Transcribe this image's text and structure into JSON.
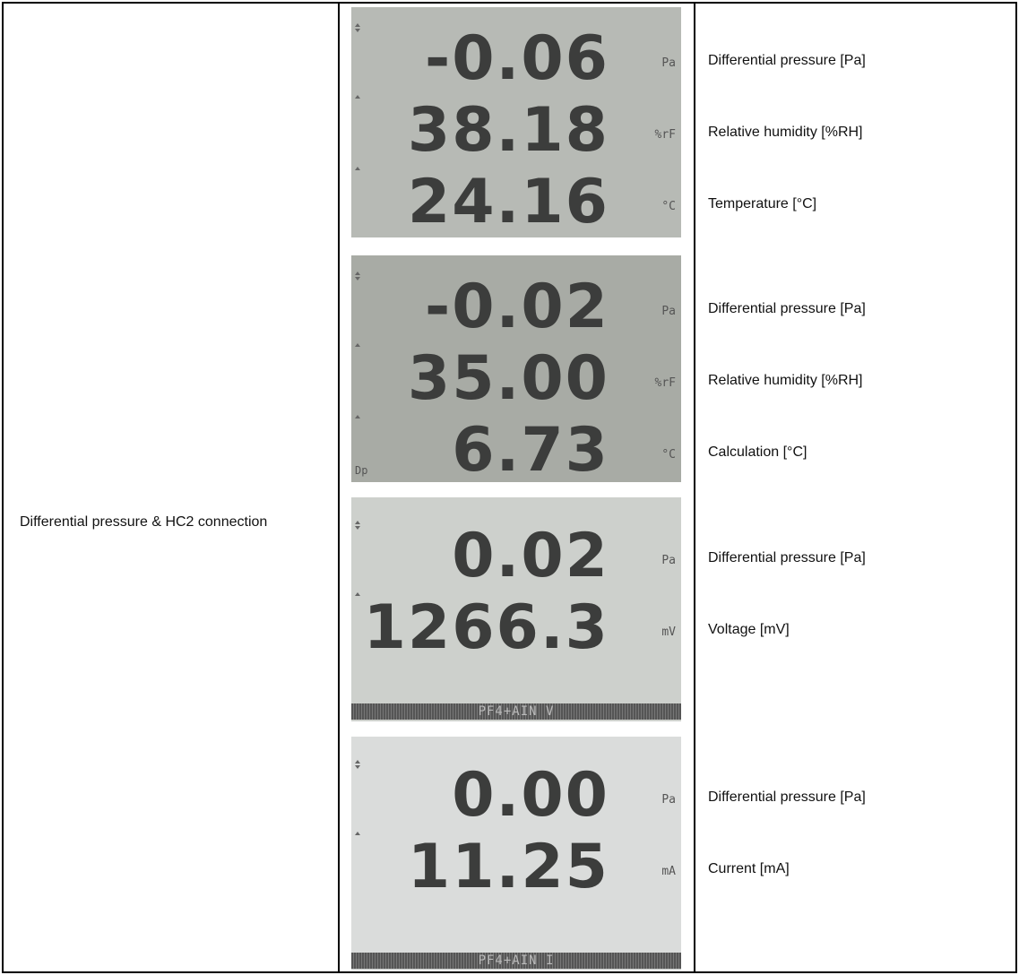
{
  "cell_label": "Differential pressure & HC2 connection",
  "displays": [
    {
      "readings": [
        {
          "value": "-0.06",
          "unit": "Pa",
          "label": "Differential pressure [Pa]"
        },
        {
          "value": "38.18",
          "unit": "%rF",
          "label": "Relative humidity [%RH]"
        },
        {
          "value": "24.16",
          "unit": "°C",
          "label": "Temperature [°C]"
        }
      ]
    },
    {
      "readings": [
        {
          "value": "-0.02",
          "unit": "Pa",
          "label": "Differential pressure [Pa]"
        },
        {
          "value": "35.00",
          "unit": "%rF",
          "label": "Relative humidity [%RH]"
        },
        {
          "value": "6.73",
          "unit": "°C",
          "label": "Calculation [°C]"
        }
      ],
      "tag": "Dp"
    },
    {
      "readings": [
        {
          "value": "0.02",
          "unit": "Pa",
          "label": "Differential pressure [Pa]"
        },
        {
          "value": "1266.3",
          "unit": "mV",
          "label": "Voltage [mV]"
        }
      ],
      "footer": "PF4+AIN V"
    },
    {
      "readings": [
        {
          "value": "0.00",
          "unit": "Pa",
          "label": "Differential pressure [Pa]"
        },
        {
          "value": "11.25",
          "unit": "mA",
          "label": "Current [mA]"
        }
      ],
      "footer": "PF4+AIN I"
    }
  ]
}
